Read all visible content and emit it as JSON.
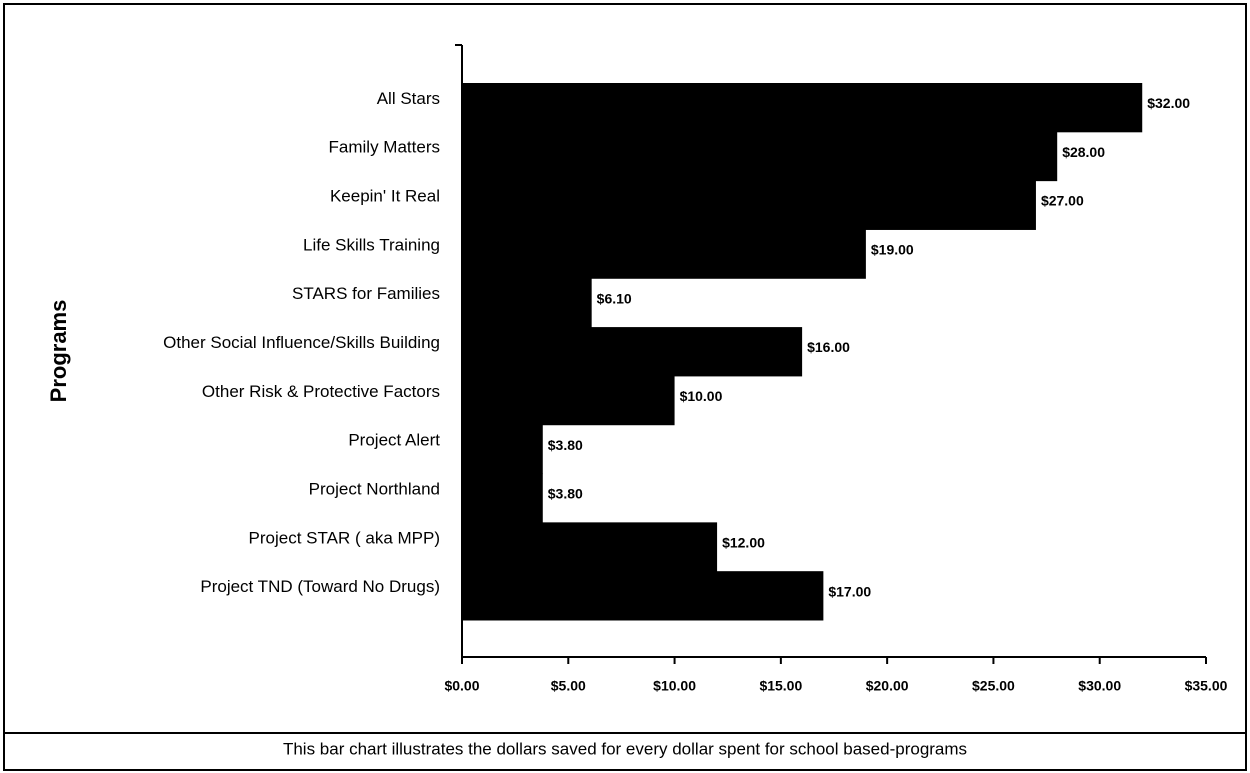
{
  "chart_data": {
    "type": "barh",
    "y_label": "Programs",
    "caption": "This bar chart illustrates the dollars saved for every dollar spent for school based-programs",
    "categories": [
      "All Stars",
      "Family Matters",
      "Keepin' It Real",
      "Life Skills Training",
      "STARS for Families",
      "Other Social Influence/Skills Building",
      "Other Risk & Protective Factors",
      "Project Alert",
      "Project Northland",
      "Project STAR ( aka MPP)",
      "Project TND (Toward No Drugs)"
    ],
    "values": [
      32,
      28,
      27,
      19,
      6.1,
      16,
      10,
      3.8,
      3.8,
      12,
      17
    ],
    "value_labels": [
      "$32.00",
      "$28.00",
      "$27.00",
      "$19.00",
      "$6.10",
      "$16.00",
      "$10.00",
      "$3.80",
      "$3.80",
      "$12.00",
      "$17.00"
    ],
    "color": "#000000",
    "xlim": [
      0,
      35
    ],
    "xticks": [
      {
        "value": 0,
        "label": "$0.00"
      },
      {
        "value": 5,
        "label": "$5.00"
      },
      {
        "value": 10,
        "label": "$10.00"
      },
      {
        "value": 15,
        "label": "$15.00"
      },
      {
        "value": 20,
        "label": "$20.00"
      },
      {
        "value": 25,
        "label": "$25.00"
      },
      {
        "value": 30,
        "label": "$30.00"
      },
      {
        "value": 35,
        "label": "$35.00"
      }
    ]
  }
}
